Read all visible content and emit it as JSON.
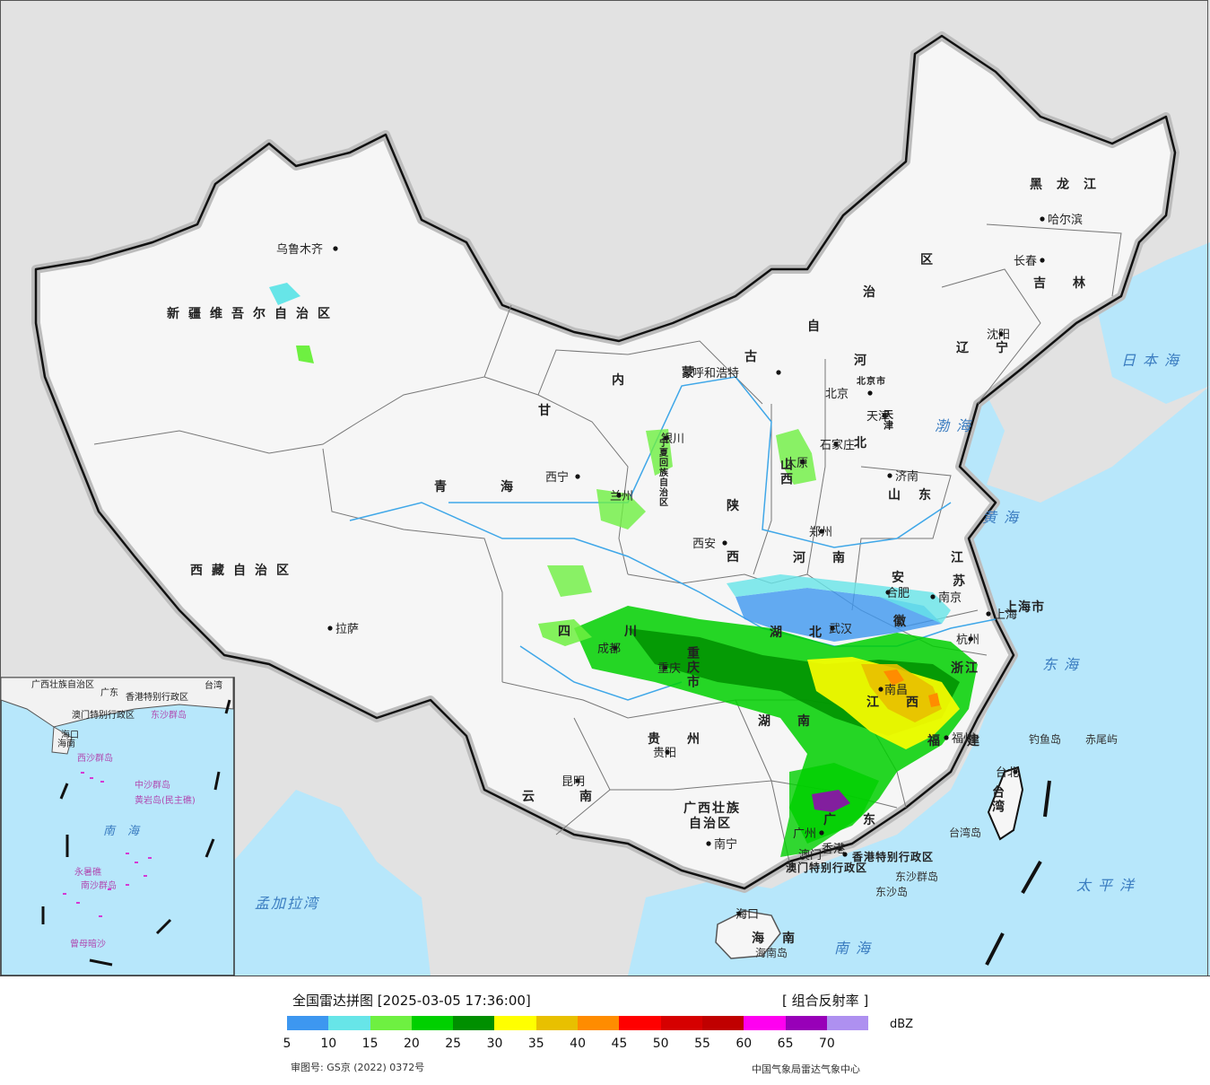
{
  "map": {
    "cities": [
      {
        "name": "乌鲁木齐"
      },
      {
        "name": "拉萨"
      },
      {
        "name": "西宁"
      },
      {
        "name": "兰州"
      },
      {
        "name": "银川"
      },
      {
        "name": "呼和浩特"
      },
      {
        "name": "北京"
      },
      {
        "name": "天津"
      },
      {
        "name": "石家庄"
      },
      {
        "name": "太原"
      },
      {
        "name": "济南"
      },
      {
        "name": "西安"
      },
      {
        "name": "郑州"
      },
      {
        "name": "合肥"
      },
      {
        "name": "南京"
      },
      {
        "name": "上海"
      },
      {
        "name": "杭州"
      },
      {
        "name": "武汉"
      },
      {
        "name": "成都"
      },
      {
        "name": "重庆"
      },
      {
        "name": "南昌"
      },
      {
        "name": "福州"
      },
      {
        "name": "贵阳"
      },
      {
        "name": "昆明"
      },
      {
        "name": "南宁"
      },
      {
        "name": "广州"
      },
      {
        "name": "香港"
      },
      {
        "name": "澳门"
      },
      {
        "name": "海口"
      },
      {
        "name": "台北"
      },
      {
        "name": "沈阳"
      },
      {
        "name": "长春"
      },
      {
        "name": "哈尔滨"
      }
    ],
    "provinces": [
      "新疆维吾尔自治区",
      "西藏自治区",
      "青海",
      "甘",
      "四川",
      "云南",
      "贵州",
      "广西壮族",
      "自治区",
      "湖南",
      "湖北",
      "河南",
      "山东",
      "江",
      "苏",
      "安",
      "徽",
      "浙江",
      "福建",
      "江西",
      "广东",
      "海南",
      "台湾",
      "陕",
      "西",
      "山西",
      "河",
      "北",
      "内",
      "蒙",
      "古",
      "自",
      "治",
      "区",
      "黑龙江",
      "吉林",
      "辽宁",
      "上海市",
      "重庆市",
      "香港特别行政区",
      "澳门特别行政区",
      "宁夏回族自治区",
      "天津",
      "北京市"
    ],
    "seas": [
      "日本海",
      "渤海",
      "黄海",
      "东海",
      "太平洋",
      "南海",
      "孟加拉湾"
    ],
    "islands": [
      "钓鱼岛",
      "赤尾屿",
      "台湾岛",
      "东沙群岛",
      "东沙岛",
      "海南岛"
    ],
    "inset": {
      "labels": [
        "广西壮族自治区",
        "广东",
        "香港特别行政区",
        "澳门特别行政区",
        "台湾",
        "东沙群岛",
        "海口",
        "海南",
        "西沙群岛",
        "中沙群岛",
        "黄岩岛(民主礁)",
        "南海",
        "永暑礁",
        "南沙群岛",
        "曾母暗沙"
      ]
    }
  },
  "legend": {
    "title": "全国雷达拼图 [2025-03-05 17:36:00]",
    "product": "[ 组合反射率 ]",
    "unit": "dBZ",
    "ticks": [
      "5",
      "10",
      "15",
      "20",
      "25",
      "30",
      "35",
      "40",
      "45",
      "50",
      "55",
      "60",
      "65",
      "70"
    ],
    "colors": [
      "#3d97f0",
      "#67e5e8",
      "#6ef041",
      "#00d000",
      "#008f00",
      "#ffff00",
      "#e8c000",
      "#ff8c00",
      "#ff0000",
      "#d60000",
      "#c00000",
      "#ff00f0",
      "#9800b8",
      "#ae90f0"
    ],
    "approval": "审图号: GS京 (2022) 0372号",
    "source": "中国气象局雷达气象中心"
  },
  "palette": {
    "ocean": "#b7e7fb",
    "land": "#f3f3f3",
    "outside": "#e1e1e1",
    "china": "#f5f5f5",
    "border": "#111111",
    "river": "#3fa7e8"
  }
}
